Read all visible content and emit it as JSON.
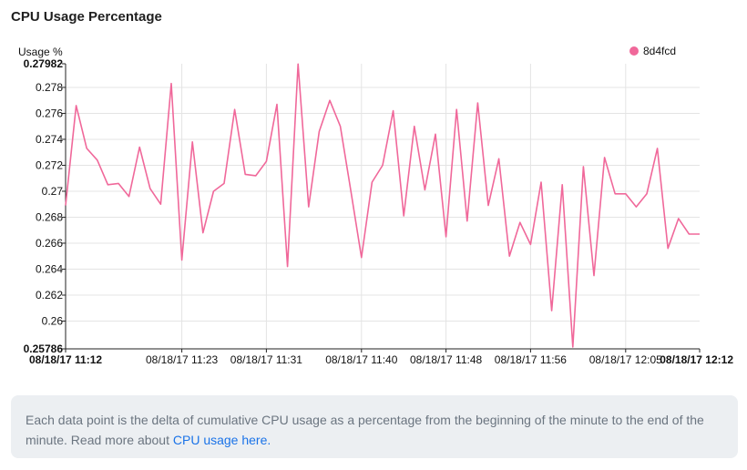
{
  "chart_title": "CPU Usage Percentage",
  "note": {
    "text": "Each data point is the delta of cumulative CPU usage as a percentage from the beginning of the minute to the end of the minute. Read more about ",
    "link": "CPU usage here."
  },
  "colors": {
    "series": "#f0689a",
    "grid": "#e4e4e4",
    "axis": "#222222"
  },
  "chart_data": {
    "type": "line",
    "title": "CPU Usage Percentage",
    "ylabel": "Usage %",
    "xlabel": "",
    "ylim": [
      0.25786,
      0.27982
    ],
    "yticks": [
      "0.27982",
      "0.278",
      "0.276",
      "0.274",
      "0.272",
      "0.27",
      "0.268",
      "0.266",
      "0.264",
      "0.262",
      "0.26",
      "0.25786"
    ],
    "xlim": [
      "08/18/17 11:12",
      "08/18/17 12:12"
    ],
    "xticks": [
      "08/18/17 11:12",
      "08/18/17 11:23",
      "08/18/17 11:31",
      "08/18/17 11:40",
      "08/18/17 11:48",
      "08/18/17 11:56",
      "08/18/17 12:05",
      "08/18/17 12:12"
    ],
    "grid": true,
    "legend": "top-right",
    "series": [
      {
        "name": "8d4fcd",
        "x": [
          "08/18/17 11:12",
          "08/18/17 11:13",
          "08/18/17 11:14",
          "08/18/17 11:15",
          "08/18/17 11:16",
          "08/18/17 11:17",
          "08/18/17 11:18",
          "08/18/17 11:19",
          "08/18/17 11:20",
          "08/18/17 11:21",
          "08/18/17 11:22",
          "08/18/17 11:23",
          "08/18/17 11:24",
          "08/18/17 11:25",
          "08/18/17 11:26",
          "08/18/17 11:27",
          "08/18/17 11:28",
          "08/18/17 11:29",
          "08/18/17 11:30",
          "08/18/17 11:31",
          "08/18/17 11:32",
          "08/18/17 11:33",
          "08/18/17 11:34",
          "08/18/17 11:35",
          "08/18/17 11:36",
          "08/18/17 11:37",
          "08/18/17 11:38",
          "08/18/17 11:39",
          "08/18/17 11:40",
          "08/18/17 11:41",
          "08/18/17 11:42",
          "08/18/17 11:43",
          "08/18/17 11:44",
          "08/18/17 11:45",
          "08/18/17 11:46",
          "08/18/17 11:47",
          "08/18/17 11:48",
          "08/18/17 11:49",
          "08/18/17 11:50",
          "08/18/17 11:51",
          "08/18/17 11:52",
          "08/18/17 11:53",
          "08/18/17 11:54",
          "08/18/17 11:55",
          "08/18/17 11:56",
          "08/18/17 11:57",
          "08/18/17 11:58",
          "08/18/17 11:59",
          "08/18/17 12:00",
          "08/18/17 12:01",
          "08/18/17 12:02",
          "08/18/17 12:03",
          "08/18/17 12:04",
          "08/18/17 12:05",
          "08/18/17 12:06",
          "08/18/17 12:07",
          "08/18/17 12:08",
          "08/18/17 12:09",
          "08/18/17 12:10",
          "08/18/17 12:11",
          "08/18/17 12:12"
        ],
        "values": [
          0.2689,
          0.2766,
          0.2733,
          0.2724,
          0.2705,
          0.2706,
          0.2696,
          0.2734,
          0.2702,
          0.269,
          0.2783,
          0.2647,
          0.2738,
          0.2668,
          0.27,
          0.2706,
          0.2763,
          0.2713,
          0.2712,
          0.2723,
          0.2767,
          0.2642,
          0.2798,
          0.2688,
          0.2746,
          0.277,
          0.275,
          0.27,
          0.2649,
          0.2707,
          0.272,
          0.2762,
          0.2681,
          0.275,
          0.2701,
          0.2744,
          0.2665,
          0.2763,
          0.2677,
          0.2768,
          0.2689,
          0.2725,
          0.265,
          0.2676,
          0.2659,
          0.2707,
          0.2608,
          0.2705,
          0.258,
          0.2719,
          0.2635,
          0.2726,
          0.2698,
          0.2698,
          0.2688,
          0.2698,
          0.2733,
          0.2656,
          0.2679,
          0.2667,
          0.2667
        ]
      }
    ]
  }
}
